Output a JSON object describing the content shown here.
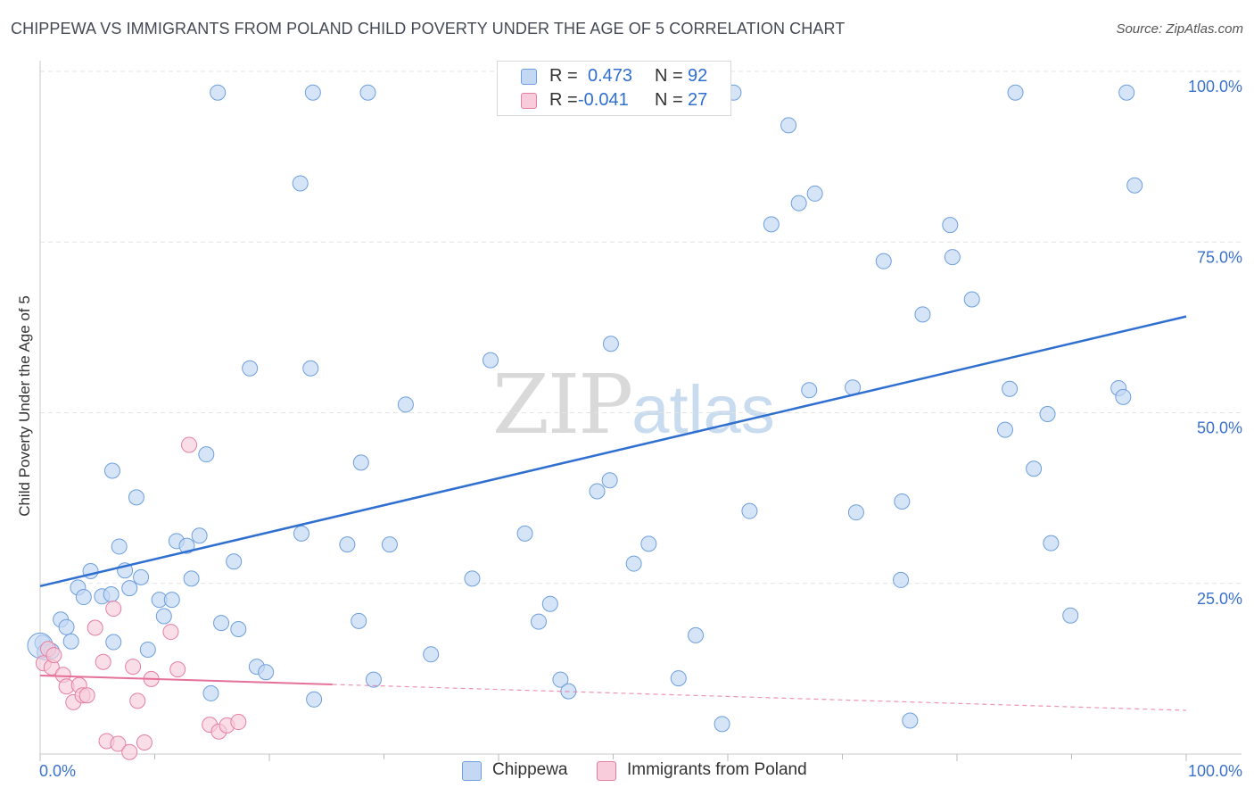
{
  "header": {
    "title": "CHIPPEWA VS IMMIGRANTS FROM POLAND CHILD POVERTY UNDER THE AGE OF 5 CORRELATION CHART",
    "source": "Source: ZipAtlas.com"
  },
  "watermark": {
    "zip": "ZIP",
    "atlas": "atlas"
  },
  "legend": {
    "r_label": "R =",
    "n_label": "N =",
    "series": [
      {
        "name": "Chippewa",
        "r": "0.473",
        "n": "92",
        "color": "#6e9fde",
        "fill": "#c4d8f4"
      },
      {
        "name": "Immigrants from Poland",
        "r": "-0.041",
        "n": "27",
        "color": "#e57fa2",
        "fill": "#f8ccda"
      }
    ]
  },
  "chart_data": {
    "type": "scatter",
    "title": "CHIPPEWA VS IMMIGRANTS FROM POLAND CHILD POVERTY UNDER THE AGE OF 5 CORRELATION CHART",
    "xlabel": "",
    "ylabel": "Child Poverty Under the Age of 5",
    "xlim": [
      0,
      100
    ],
    "ylim": [
      0,
      100
    ],
    "x_tick_labels": [
      "0.0%",
      "100.0%"
    ],
    "y_tick_labels": [
      {
        "value": 25,
        "label": "25.0%"
      },
      {
        "value": 50,
        "label": "50.0%"
      },
      {
        "value": 75,
        "label": "75.0%"
      },
      {
        "value": 100,
        "label": "100.0%"
      }
    ],
    "grid": true,
    "series": [
      {
        "name": "Chippewa",
        "color": "#6e9fde",
        "fill": "#c4d8f4",
        "trend": {
          "x": [
            0,
            100
          ],
          "y": [
            24.6,
            64.1
          ],
          "style": "solid",
          "color": "#2f6fd0"
        },
        "points": [
          [
            0.2,
            16.3
          ],
          [
            0.4,
            14.9
          ],
          [
            1.0,
            15.1
          ],
          [
            1.8,
            19.7
          ],
          [
            2.3,
            18.6
          ],
          [
            2.7,
            16.5
          ],
          [
            3.3,
            24.4
          ],
          [
            3.8,
            23.0
          ],
          [
            4.4,
            26.8
          ],
          [
            5.4,
            23.1
          ],
          [
            6.2,
            23.4
          ],
          [
            6.4,
            16.4
          ],
          [
            6.3,
            41.5
          ],
          [
            6.9,
            30.4
          ],
          [
            7.4,
            26.9
          ],
          [
            7.8,
            24.3
          ],
          [
            8.4,
            37.6
          ],
          [
            8.8,
            25.9
          ],
          [
            9.4,
            15.3
          ],
          [
            10.4,
            22.6
          ],
          [
            10.8,
            20.2
          ],
          [
            11.5,
            22.6
          ],
          [
            11.9,
            31.2
          ],
          [
            12.8,
            30.5
          ],
          [
            13.2,
            25.7
          ],
          [
            13.9,
            32.0
          ],
          [
            14.5,
            43.9
          ],
          [
            14.9,
            8.9
          ],
          [
            15.8,
            19.2
          ],
          [
            16.9,
            28.2
          ],
          [
            17.3,
            18.3
          ],
          [
            18.3,
            56.5
          ],
          [
            18.9,
            12.8
          ],
          [
            19.7,
            12.0
          ],
          [
            22.7,
            83.6
          ],
          [
            22.8,
            32.3
          ],
          [
            23.6,
            56.5
          ],
          [
            23.9,
            8.0
          ],
          [
            26.8,
            30.7
          ],
          [
            27.8,
            19.5
          ],
          [
            28.0,
            42.7
          ],
          [
            29.1,
            10.9
          ],
          [
            30.5,
            30.7
          ],
          [
            31.9,
            51.2
          ],
          [
            34.1,
            14.6
          ],
          [
            37.7,
            25.7
          ],
          [
            39.3,
            57.7
          ],
          [
            42.3,
            32.3
          ],
          [
            43.5,
            19.4
          ],
          [
            44.5,
            22.0
          ],
          [
            45.4,
            10.9
          ],
          [
            46.1,
            9.2
          ],
          [
            48.6,
            38.5
          ],
          [
            49.7,
            40.1
          ],
          [
            49.8,
            60.1
          ],
          [
            51.8,
            27.9
          ],
          [
            53.1,
            30.8
          ],
          [
            55.7,
            11.1
          ],
          [
            57.2,
            17.4
          ],
          [
            59.5,
            4.4
          ],
          [
            61.9,
            35.6
          ],
          [
            63.8,
            77.6
          ],
          [
            65.3,
            92.1
          ],
          [
            66.2,
            80.7
          ],
          [
            67.1,
            53.3
          ],
          [
            67.6,
            82.1
          ],
          [
            70.9,
            53.7
          ],
          [
            71.2,
            35.4
          ],
          [
            73.6,
            72.2
          ],
          [
            75.9,
            4.9
          ],
          [
            75.2,
            37.0
          ],
          [
            77.0,
            64.4
          ],
          [
            79.4,
            77.5
          ],
          [
            79.6,
            72.8
          ],
          [
            81.3,
            66.6
          ],
          [
            84.2,
            47.5
          ],
          [
            84.6,
            53.5
          ],
          [
            86.7,
            41.8
          ],
          [
            87.9,
            49.8
          ],
          [
            88.2,
            30.9
          ],
          [
            89.9,
            20.3
          ],
          [
            94.1,
            53.6
          ],
          [
            94.5,
            52.3
          ],
          [
            95.5,
            83.3
          ],
          [
            75.1,
            25.5
          ],
          [
            60.5,
            96.9
          ],
          [
            50.7,
            96.9
          ],
          [
            28.6,
            96.9
          ],
          [
            15.5,
            96.9
          ],
          [
            23.8,
            96.9
          ],
          [
            85.1,
            96.9
          ],
          [
            94.8,
            96.9
          ]
        ]
      },
      {
        "name": "Immigrants from Poland",
        "color": "#e57fa2",
        "fill": "#f8ccda",
        "trend": {
          "x": [
            0,
            25.5
          ],
          "y": [
            11.5,
            10.2
          ],
          "dashed_to": [
            100,
            6.4
          ],
          "style": "solid-then-dashed",
          "color": "#e5709a"
        },
        "points": [
          [
            0.3,
            13.3
          ],
          [
            0.7,
            15.4
          ],
          [
            1.0,
            12.7
          ],
          [
            1.2,
            14.5
          ],
          [
            2.0,
            11.6
          ],
          [
            2.3,
            9.9
          ],
          [
            2.9,
            7.6
          ],
          [
            3.4,
            10.1
          ],
          [
            3.7,
            8.6
          ],
          [
            4.1,
            8.6
          ],
          [
            4.8,
            18.5
          ],
          [
            5.5,
            13.5
          ],
          [
            5.8,
            1.9
          ],
          [
            6.4,
            21.3
          ],
          [
            6.8,
            1.5
          ],
          [
            7.8,
            0.3
          ],
          [
            8.1,
            12.8
          ],
          [
            8.5,
            7.8
          ],
          [
            9.1,
            1.7
          ],
          [
            9.7,
            11.0
          ],
          [
            11.4,
            17.9
          ],
          [
            12.0,
            12.4
          ],
          [
            13.0,
            45.3
          ],
          [
            14.8,
            4.3
          ],
          [
            15.6,
            3.3
          ],
          [
            16.3,
            4.2
          ],
          [
            17.3,
            4.7
          ]
        ]
      }
    ]
  }
}
